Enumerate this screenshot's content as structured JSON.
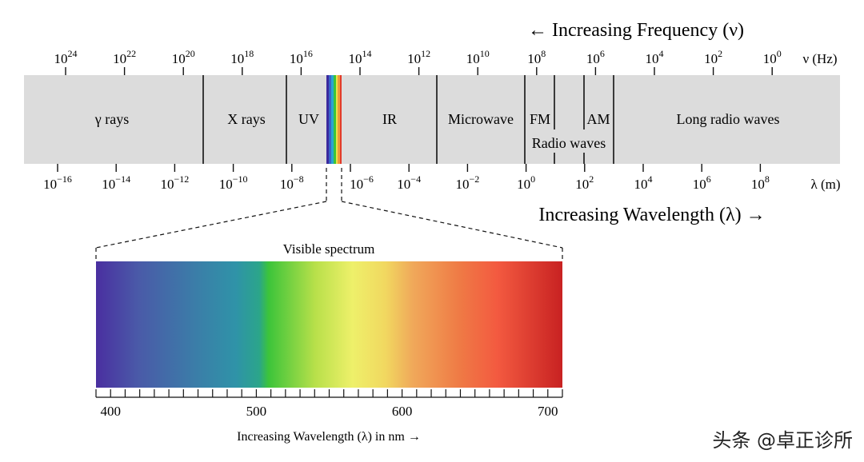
{
  "header": {
    "frequency_title": "← Increasing Frequency (ν)",
    "wavelength_title": "Increasing Wavelength (λ) →"
  },
  "frequency_axis": {
    "unit": "ν (Hz)",
    "base": "10",
    "exponents": [
      "24",
      "22",
      "20",
      "18",
      "16",
      "14",
      "12",
      "10",
      "8",
      "6",
      "4",
      "2",
      "0"
    ]
  },
  "wavelength_axis": {
    "unit": "λ (m)",
    "base": "10",
    "exponents": [
      "−16",
      "−14",
      "−12",
      "−10",
      "−8",
      "−6",
      "−4",
      "−2",
      "0",
      "2",
      "4",
      "6",
      "8"
    ]
  },
  "bands": {
    "gamma": "γ rays",
    "xray": "X rays",
    "uv": "UV",
    "ir": "IR",
    "microwave": "Microwave",
    "fm": "FM",
    "am": "AM",
    "radio": "Radio waves",
    "long_radio": "Long radio waves"
  },
  "visible": {
    "title": "Visible spectrum",
    "tick_labels": [
      "400",
      "500",
      "600",
      "700"
    ],
    "axis_label": "Increasing Wavelength (λ) in nm →"
  },
  "watermark": "头条 @卓正诊所",
  "colors": {
    "band_fill": "#dcdcdc",
    "band_line": "#111111"
  }
}
